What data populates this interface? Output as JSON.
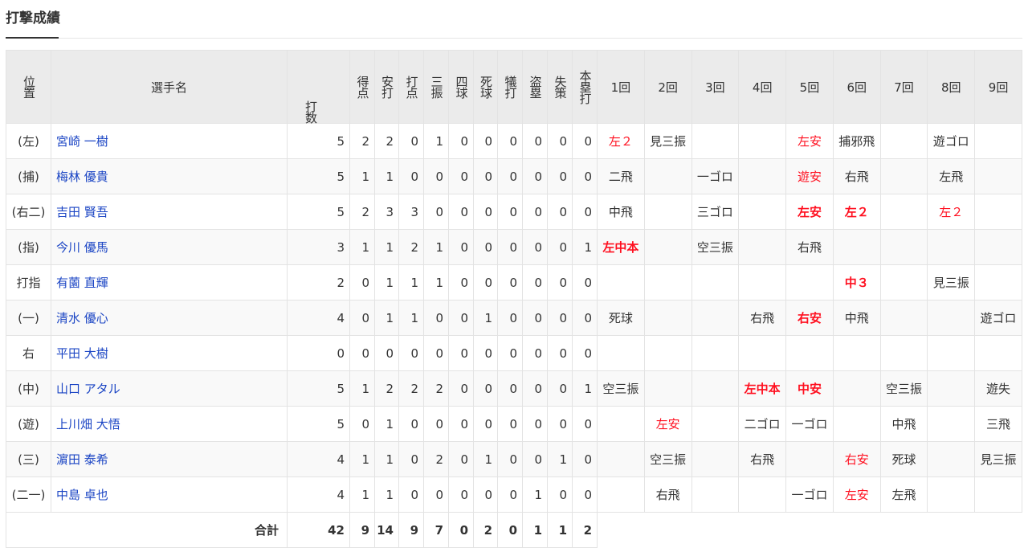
{
  "title": "打撃成績",
  "headers": {
    "position": "位置",
    "player": "選手名",
    "stats": [
      "打数",
      "得点",
      "安打",
      "打点",
      "三振",
      "四球",
      "死球",
      "犠打",
      "盗塁",
      "失策",
      "本塁打"
    ],
    "innings": [
      "1回",
      "2回",
      "3回",
      "4回",
      "5回",
      "6回",
      "7回",
      "8回",
      "9回"
    ]
  },
  "colors": {
    "link": "#1b45c4",
    "hit": "#ff1020",
    "header_bg": "#ebebeb"
  },
  "rows": [
    {
      "pos": "(左)",
      "name": "宮崎 一樹",
      "stats": [
        5,
        2,
        2,
        0,
        1,
        0,
        0,
        0,
        0,
        0,
        0
      ],
      "innings": [
        {
          "t": "左２",
          "s": "hit"
        },
        {
          "t": "見三振",
          "s": ""
        },
        {
          "t": "",
          "s": ""
        },
        {
          "t": "",
          "s": ""
        },
        {
          "t": "左安",
          "s": "hit"
        },
        {
          "t": "捕邪飛",
          "s": ""
        },
        {
          "t": "",
          "s": ""
        },
        {
          "t": "遊ゴロ",
          "s": ""
        },
        {
          "t": "",
          "s": ""
        }
      ]
    },
    {
      "pos": "(捕)",
      "name": "梅林 優貴",
      "stats": [
        5,
        1,
        1,
        0,
        0,
        0,
        0,
        0,
        0,
        0,
        0
      ],
      "innings": [
        {
          "t": "二飛",
          "s": ""
        },
        {
          "t": "",
          "s": ""
        },
        {
          "t": "一ゴロ",
          "s": ""
        },
        {
          "t": "",
          "s": ""
        },
        {
          "t": "遊安",
          "s": "hit"
        },
        {
          "t": "右飛",
          "s": ""
        },
        {
          "t": "",
          "s": ""
        },
        {
          "t": "左飛",
          "s": ""
        },
        {
          "t": "",
          "s": ""
        }
      ]
    },
    {
      "pos": "(右二)",
      "name": "吉田 賢吾",
      "stats": [
        5,
        2,
        3,
        3,
        0,
        0,
        0,
        0,
        0,
        0,
        0
      ],
      "innings": [
        {
          "t": "中飛",
          "s": ""
        },
        {
          "t": "",
          "s": ""
        },
        {
          "t": "三ゴロ",
          "s": ""
        },
        {
          "t": "",
          "s": ""
        },
        {
          "t": "左安",
          "s": "rbi"
        },
        {
          "t": "左２",
          "s": "rbi"
        },
        {
          "t": "",
          "s": ""
        },
        {
          "t": "左２",
          "s": "hit"
        },
        {
          "t": "",
          "s": ""
        }
      ]
    },
    {
      "pos": "(指)",
      "name": "今川 優馬",
      "stats": [
        3,
        1,
        1,
        2,
        1,
        0,
        0,
        0,
        0,
        0,
        1
      ],
      "innings": [
        {
          "t": "左中本",
          "s": "rbi"
        },
        {
          "t": "",
          "s": ""
        },
        {
          "t": "空三振",
          "s": ""
        },
        {
          "t": "",
          "s": ""
        },
        {
          "t": "右飛",
          "s": ""
        },
        {
          "t": "",
          "s": ""
        },
        {
          "t": "",
          "s": ""
        },
        {
          "t": "",
          "s": ""
        },
        {
          "t": "",
          "s": ""
        }
      ]
    },
    {
      "pos": "打指",
      "name": "有薗 直輝",
      "stats": [
        2,
        0,
        1,
        1,
        1,
        0,
        0,
        0,
        0,
        0,
        0
      ],
      "innings": [
        {
          "t": "",
          "s": ""
        },
        {
          "t": "",
          "s": ""
        },
        {
          "t": "",
          "s": ""
        },
        {
          "t": "",
          "s": ""
        },
        {
          "t": "",
          "s": ""
        },
        {
          "t": "中３",
          "s": "rbi"
        },
        {
          "t": "",
          "s": ""
        },
        {
          "t": "見三振",
          "s": ""
        },
        {
          "t": "",
          "s": ""
        }
      ]
    },
    {
      "pos": "(一)",
      "name": "清水 優心",
      "stats": [
        4,
        0,
        1,
        1,
        0,
        0,
        1,
        0,
        0,
        0,
        0
      ],
      "innings": [
        {
          "t": "死球",
          "s": ""
        },
        {
          "t": "",
          "s": ""
        },
        {
          "t": "",
          "s": ""
        },
        {
          "t": "右飛",
          "s": ""
        },
        {
          "t": "右安",
          "s": "rbi"
        },
        {
          "t": "中飛",
          "s": ""
        },
        {
          "t": "",
          "s": ""
        },
        {
          "t": "",
          "s": ""
        },
        {
          "t": "遊ゴロ",
          "s": ""
        }
      ]
    },
    {
      "pos": "右",
      "name": "平田 大樹",
      "stats": [
        0,
        0,
        0,
        0,
        0,
        0,
        0,
        0,
        0,
        0,
        0
      ],
      "innings": [
        {
          "t": "",
          "s": ""
        },
        {
          "t": "",
          "s": ""
        },
        {
          "t": "",
          "s": ""
        },
        {
          "t": "",
          "s": ""
        },
        {
          "t": "",
          "s": ""
        },
        {
          "t": "",
          "s": ""
        },
        {
          "t": "",
          "s": ""
        },
        {
          "t": "",
          "s": ""
        },
        {
          "t": "",
          "s": ""
        }
      ]
    },
    {
      "pos": "(中)",
      "name": "山口 アタル",
      "stats": [
        5,
        1,
        2,
        2,
        2,
        0,
        0,
        0,
        0,
        0,
        1
      ],
      "innings": [
        {
          "t": "空三振",
          "s": ""
        },
        {
          "t": "",
          "s": ""
        },
        {
          "t": "",
          "s": ""
        },
        {
          "t": "左中本",
          "s": "rbi"
        },
        {
          "t": "中安",
          "s": "rbi"
        },
        {
          "t": "",
          "s": ""
        },
        {
          "t": "空三振",
          "s": ""
        },
        {
          "t": "",
          "s": ""
        },
        {
          "t": "遊失",
          "s": ""
        }
      ]
    },
    {
      "pos": "(遊)",
      "name": "上川畑 大悟",
      "stats": [
        5,
        0,
        1,
        0,
        0,
        0,
        0,
        0,
        0,
        0,
        0
      ],
      "innings": [
        {
          "t": "",
          "s": ""
        },
        {
          "t": "左安",
          "s": "hit"
        },
        {
          "t": "",
          "s": ""
        },
        {
          "t": "二ゴロ",
          "s": ""
        },
        {
          "t": "一ゴロ",
          "s": ""
        },
        {
          "t": "",
          "s": ""
        },
        {
          "t": "中飛",
          "s": ""
        },
        {
          "t": "",
          "s": ""
        },
        {
          "t": "三飛",
          "s": ""
        }
      ]
    },
    {
      "pos": "(三)",
      "name": "濵田 泰希",
      "stats": [
        4,
        1,
        1,
        0,
        2,
        0,
        1,
        0,
        0,
        1,
        0
      ],
      "innings": [
        {
          "t": "",
          "s": ""
        },
        {
          "t": "空三振",
          "s": ""
        },
        {
          "t": "",
          "s": ""
        },
        {
          "t": "右飛",
          "s": ""
        },
        {
          "t": "",
          "s": ""
        },
        {
          "t": "右安",
          "s": "hit"
        },
        {
          "t": "死球",
          "s": ""
        },
        {
          "t": "",
          "s": ""
        },
        {
          "t": "見三振",
          "s": ""
        }
      ]
    },
    {
      "pos": "(二一)",
      "name": "中島 卓也",
      "stats": [
        4,
        1,
        1,
        0,
        0,
        0,
        0,
        0,
        1,
        0,
        0
      ],
      "innings": [
        {
          "t": "",
          "s": ""
        },
        {
          "t": "右飛",
          "s": ""
        },
        {
          "t": "",
          "s": ""
        },
        {
          "t": "",
          "s": ""
        },
        {
          "t": "一ゴロ",
          "s": ""
        },
        {
          "t": "左安",
          "s": "hit"
        },
        {
          "t": "左飛",
          "s": ""
        },
        {
          "t": "",
          "s": ""
        },
        {
          "t": "",
          "s": ""
        }
      ]
    }
  ],
  "total": {
    "label": "合計",
    "stats": [
      42,
      9,
      14,
      9,
      7,
      0,
      2,
      0,
      1,
      1,
      2
    ]
  }
}
